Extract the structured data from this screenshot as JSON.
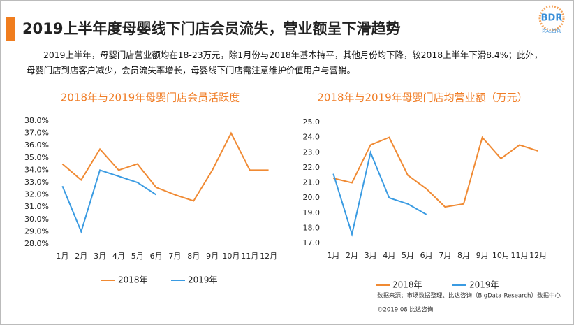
{
  "header": {
    "title": "2019上半年度母婴线下门店会员流失，营业额呈下滑趋势"
  },
  "logo": {
    "text": "BDR",
    "subtext": "比达咨询"
  },
  "paragraph": "2019上半年，母婴门店营业额均在18-23万元，除1月份与2018年基本持平，其他月份均下降，较2018上半年下滑8.4%；此外，母婴门店到店客户减少，会员流失率增长，母婴线下门店需注意维护价值用户与营销。",
  "source": "数据来源：市场数据整理、比达咨询（BigData-Research）数据中心",
  "copyright": "©2019.08  比达咨询",
  "chart_data": [
    {
      "type": "line",
      "title": "2018年与2019年母婴门店会员活跃度",
      "categories": [
        "1月",
        "2月",
        "3月",
        "4月",
        "5月",
        "6月",
        "7月",
        "8月",
        "9月",
        "10月",
        "11月",
        "12月"
      ],
      "series": [
        {
          "name": "2018年",
          "color": "#f08a33",
          "values": [
            34.5,
            33.2,
            35.7,
            34.0,
            34.5,
            32.6,
            32.0,
            31.5,
            34.0,
            37.0,
            34.0,
            34.0
          ]
        },
        {
          "name": "2019年",
          "color": "#3a9be2",
          "values": [
            32.7,
            29.0,
            34.0,
            33.5,
            33.0,
            32.0,
            null,
            null,
            null,
            null,
            null,
            null
          ]
        }
      ],
      "ylim": [
        28,
        38
      ],
      "yticks": [
        {
          "value": 28,
          "label": "28.0%"
        },
        {
          "value": 29,
          "label": "29.0%"
        },
        {
          "value": 30,
          "label": "30.0%"
        },
        {
          "value": 31,
          "label": "31.0%"
        },
        {
          "value": 32,
          "label": "32.0%"
        },
        {
          "value": 33,
          "label": "33.0%"
        },
        {
          "value": 34,
          "label": "34.0%"
        },
        {
          "value": 35,
          "label": "35.0%"
        },
        {
          "value": 36,
          "label": "36.0%"
        },
        {
          "value": 37,
          "label": "37.0%"
        },
        {
          "value": 38,
          "label": "38.0%"
        }
      ],
      "grid": false,
      "legend": "bottom"
    },
    {
      "type": "line",
      "title": "2018年与2019年母婴门店均营业额（万元）",
      "categories": [
        "1月",
        "2月",
        "3月",
        "4月",
        "5月",
        "6月",
        "7月",
        "8月",
        "9月",
        "10月",
        "11月",
        "12月"
      ],
      "series": [
        {
          "name": "2018年",
          "color": "#f08a33",
          "values": [
            21.3,
            21.0,
            23.5,
            24.0,
            21.5,
            20.6,
            19.4,
            19.6,
            24.0,
            22.6,
            23.5,
            23.1
          ]
        },
        {
          "name": "2019年",
          "color": "#3a9be2",
          "values": [
            21.6,
            17.6,
            23.0,
            20.0,
            19.6,
            18.9,
            null,
            null,
            null,
            null,
            null,
            null
          ]
        }
      ],
      "ylim": [
        17,
        25
      ],
      "yticks": [
        {
          "value": 17,
          "label": "17.0"
        },
        {
          "value": 18,
          "label": "18.0"
        },
        {
          "value": 19,
          "label": "19.0"
        },
        {
          "value": 20,
          "label": "20.0"
        },
        {
          "value": 21,
          "label": "21.0"
        },
        {
          "value": 22,
          "label": "22.0"
        },
        {
          "value": 23,
          "label": "23.0"
        },
        {
          "value": 24,
          "label": "24.0"
        },
        {
          "value": 25,
          "label": "25.0"
        }
      ],
      "grid": false,
      "legend": "bottom"
    }
  ]
}
